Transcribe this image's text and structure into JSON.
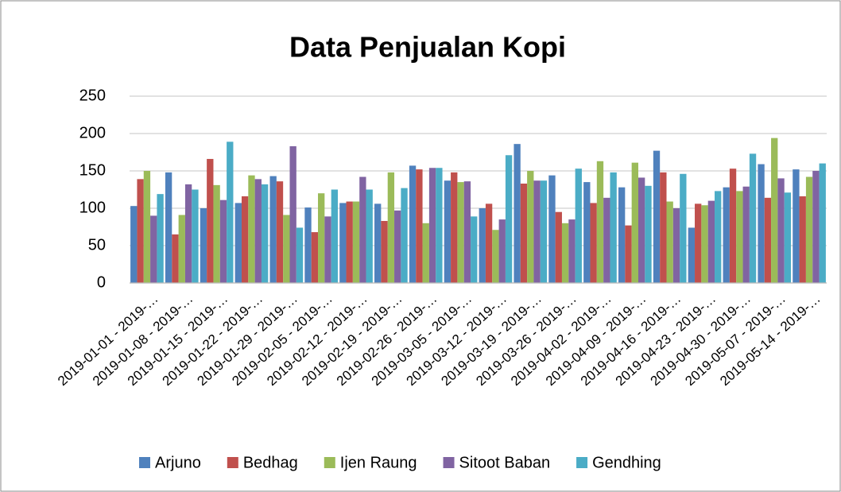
{
  "chart_data": {
    "type": "bar",
    "title": "Data Penjualan Kopi",
    "categories": [
      "2019-01-01 - 2019-…",
      "2019-01-08 - 2019-…",
      "2019-01-15 - 2019-…",
      "2019-01-22 - 2019-…",
      "2019-01-29 - 2019-…",
      "2019-02-05 - 2019-…",
      "2019-02-12 - 2019-…",
      "2019-02-19 - 2019-…",
      "2019-02-26 - 2019-…",
      "2019-03-05 - 2019-…",
      "2019-03-12 - 2019-…",
      "2019-03-19 - 2019-…",
      "2019-03-26 - 2019-…",
      "2019-04-02 - 2019-…",
      "2019-04-09 - 2019-…",
      "2019-04-16 - 2019-…",
      "2019-04-23 - 2019-…",
      "2019-04-30 - 2019-…",
      "2019-05-07 - 2019-…",
      "2019-05-14 - 2019-…"
    ],
    "series": [
      {
        "name": "Arjuno",
        "color": "#4f81bd",
        "values": [
          103,
          148,
          100,
          107,
          143,
          101,
          107,
          106,
          157,
          137,
          100,
          186,
          144,
          135,
          128,
          177,
          74,
          128,
          159,
          152
        ]
      },
      {
        "name": "Bedhag",
        "color": "#c0504d",
        "values": [
          139,
          65,
          166,
          116,
          136,
          68,
          109,
          83,
          152,
          148,
          106,
          133,
          95,
          107,
          77,
          148,
          106,
          153,
          114,
          116
        ]
      },
      {
        "name": "Ijen Raung",
        "color": "#9bbb59",
        "values": [
          150,
          91,
          131,
          144,
          91,
          120,
          109,
          148,
          80,
          135,
          71,
          150,
          80,
          163,
          161,
          109,
          104,
          123,
          194,
          142
        ]
      },
      {
        "name": "Sitoot Baban",
        "color": "#8064a2",
        "values": [
          90,
          132,
          111,
          139,
          183,
          89,
          142,
          97,
          154,
          136,
          85,
          137,
          85,
          114,
          141,
          100,
          110,
          129,
          140,
          150
        ]
      },
      {
        "name": "Gendhing",
        "color": "#4bacc6",
        "values": [
          119,
          125,
          189,
          132,
          74,
          125,
          125,
          127,
          154,
          89,
          171,
          137,
          153,
          148,
          130,
          146,
          123,
          173,
          121,
          160
        ]
      }
    ],
    "ylim": [
      0,
      250
    ],
    "yticks": [
      0,
      50,
      100,
      150,
      200,
      250
    ],
    "grid": true,
    "legend": "bottom"
  }
}
